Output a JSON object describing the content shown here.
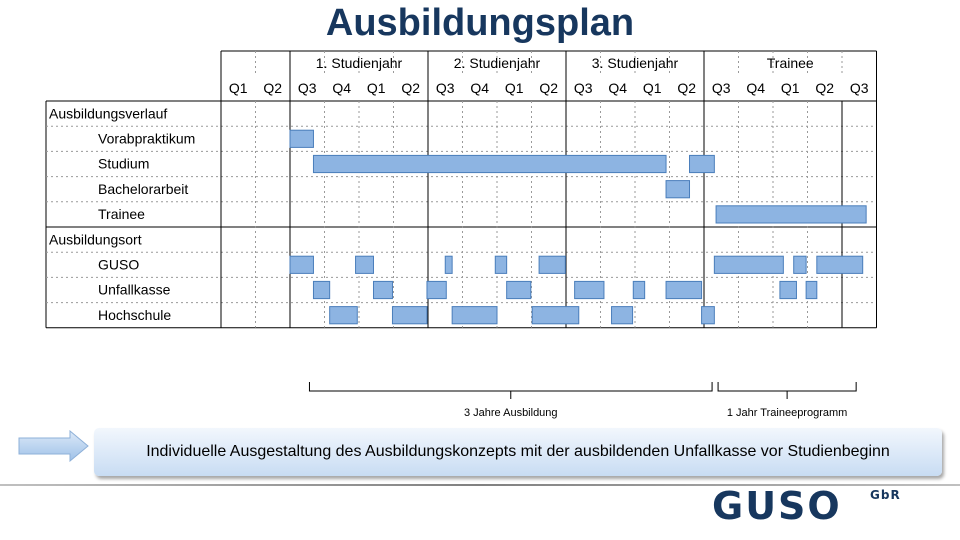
{
  "title": "Ausbildungsplan",
  "colors": {
    "bar_fill": "#8DB4E2",
    "bar_stroke": "#4A7EBB",
    "title": "#17375E",
    "logo": "#17375E"
  },
  "chart_data": {
    "type": "gantt",
    "title": "Ausbildungsplan",
    "periods": [
      {
        "label": "",
        "columns": [
          "Q1",
          "Q2"
        ]
      },
      {
        "label": "1. Studienjahr",
        "columns": [
          "Q3",
          "Q4",
          "Q1",
          "Q2"
        ]
      },
      {
        "label": "2. Studienjahr",
        "columns": [
          "Q3",
          "Q4",
          "Q1",
          "Q2"
        ]
      },
      {
        "label": "3. Studienjahr",
        "columns": [
          "Q3",
          "Q4",
          "Q1",
          "Q2"
        ]
      },
      {
        "label": "Trainee",
        "columns": [
          "Q3",
          "Q4",
          "Q1",
          "Q2",
          "Q3"
        ]
      }
    ],
    "sections": [
      {
        "label": "Ausbildungsverlauf",
        "rows": [
          {
            "label": "Vorabpraktikum",
            "bars": [
              [
                2.0,
                2.68
              ]
            ]
          },
          {
            "label": "Studium",
            "bars": [
              [
                2.68,
                12.9
              ],
              [
                13.58,
                14.3
              ]
            ]
          },
          {
            "label": "Bachelorarbeit",
            "bars": [
              [
                12.9,
                13.58
              ]
            ]
          },
          {
            "label": "Trainee",
            "bars": [
              [
                14.35,
                18.7
              ]
            ]
          }
        ]
      },
      {
        "label": "Ausbildungsort",
        "rows": [
          {
            "label": "GUSO",
            "bars": [
              [
                2.0,
                2.68
              ],
              [
                3.9,
                4.42
              ],
              [
                6.5,
                6.7
              ],
              [
                7.95,
                8.28
              ],
              [
                9.22,
                9.98
              ],
              [
                14.3,
                16.3
              ],
              [
                16.6,
                16.96
              ],
              [
                17.27,
                18.6
              ]
            ]
          },
          {
            "label": "Unfallkasse",
            "bars": [
              [
                2.68,
                3.15
              ],
              [
                4.42,
                4.97
              ],
              [
                5.97,
                6.53
              ],
              [
                8.28,
                8.98
              ],
              [
                10.25,
                11.1
              ],
              [
                11.95,
                12.28
              ],
              [
                12.9,
                13.93
              ],
              [
                16.2,
                16.68
              ],
              [
                16.96,
                17.27
              ]
            ]
          },
          {
            "label": "Hochschule",
            "bars": [
              [
                3.15,
                3.95
              ],
              [
                4.97,
                5.97
              ],
              [
                6.7,
                8.0
              ],
              [
                9.02,
                10.37
              ],
              [
                11.32,
                11.93
              ],
              [
                13.93,
                14.3
              ]
            ]
          }
        ]
      }
    ],
    "annotations": [
      {
        "label": "3 Jahre Ausbildung",
        "from": 2.68,
        "to": 14.35
      },
      {
        "label": "1 Jahr Traineeprogramm",
        "from": 14.35,
        "to": 18.7
      }
    ]
  },
  "banner": {
    "text": "Individuelle Ausgestaltung des Ausbildungskonzepts mit der ausbildenden Unfallkasse vor Studienbeginn"
  },
  "logo": {
    "main": "GUSO",
    "sub": "GbR"
  }
}
